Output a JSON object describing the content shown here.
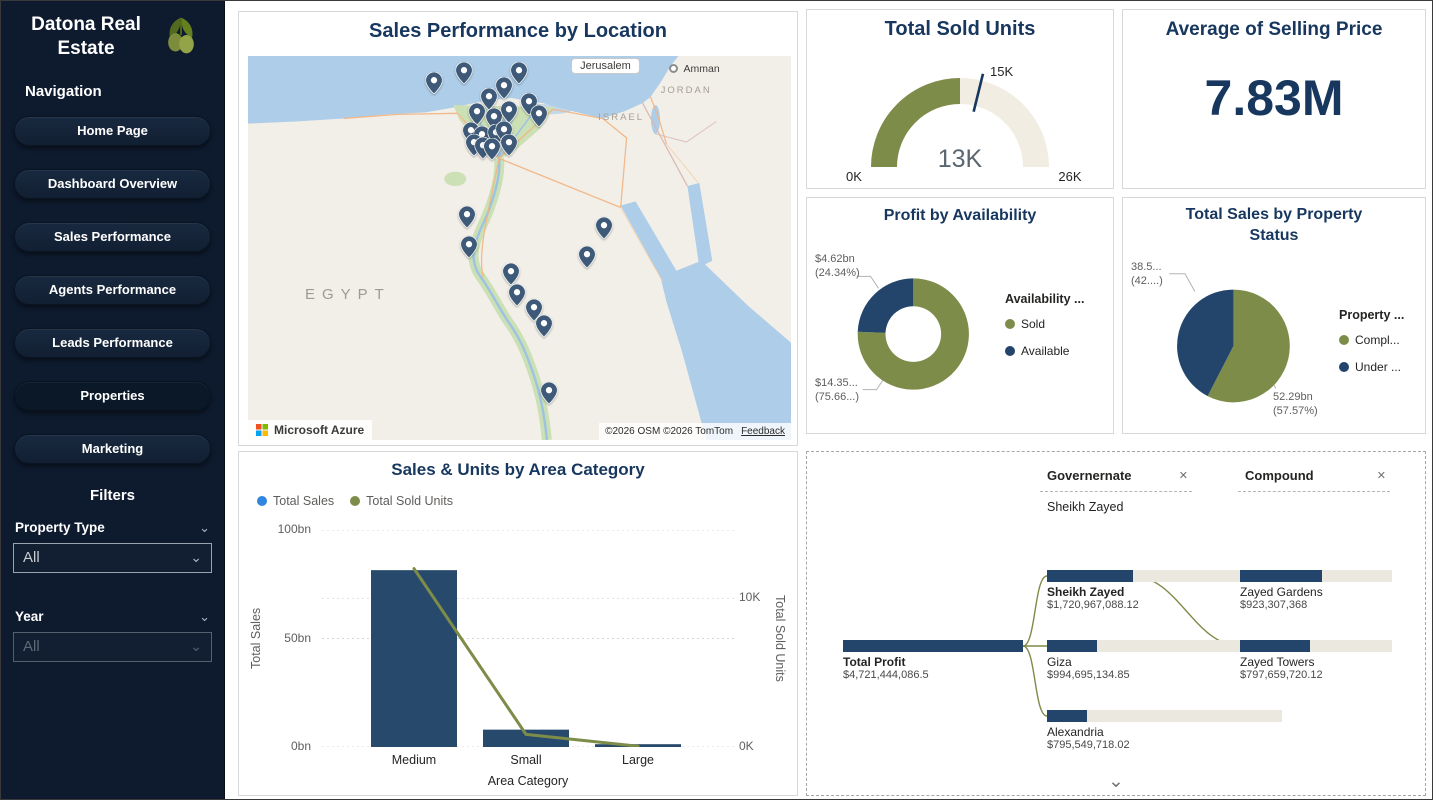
{
  "app": {
    "title": "Datona Real Estate"
  },
  "sidebar": {
    "nav_heading": "Navigation",
    "nav_items": [
      {
        "label": "Home Page",
        "active": false
      },
      {
        "label": "Dashboard Overview",
        "active": false
      },
      {
        "label": "Sales Performance",
        "active": false
      },
      {
        "label": "Agents Performance",
        "active": false
      },
      {
        "label": "Leads Performance",
        "active": false
      },
      {
        "label": "Properties",
        "active": true
      },
      {
        "label": "Marketing",
        "active": false
      }
    ],
    "filters_heading": "Filters",
    "filters": [
      {
        "label": "Property Type",
        "value": "All"
      },
      {
        "label": "Year",
        "value": "All"
      }
    ]
  },
  "map": {
    "title": "Sales Performance by Location",
    "labels": {
      "jerusalem": "Jerusalem",
      "amman": "Amman",
      "israel": "ISRAEL",
      "jordan": "JORDAN",
      "egypt": "EGYPT"
    },
    "attribution": {
      "brand": "Microsoft Azure",
      "copyright": "©2026 OSM  ©2026 TomTom",
      "feedback": "Feedback"
    },
    "pin_color": "#3E5A78",
    "pins": [
      [
        34.3,
        11.3
      ],
      [
        39.8,
        8.6
      ],
      [
        47.2,
        12.6
      ],
      [
        49.9,
        8.6
      ],
      [
        51.7,
        16.7
      ],
      [
        44.4,
        15.3
      ],
      [
        42.2,
        19.4
      ],
      [
        45.3,
        20.7
      ],
      [
        48.1,
        18.8
      ],
      [
        41.1,
        24.2
      ],
      [
        43.1,
        25.3
      ],
      [
        45.7,
        24.7
      ],
      [
        47.2,
        23.9
      ],
      [
        41.7,
        27.4
      ],
      [
        43.3,
        28
      ],
      [
        45,
        28.5
      ],
      [
        48.1,
        27.4
      ],
      [
        53.6,
        19.9
      ],
      [
        40.4,
        46.2
      ],
      [
        40.7,
        53.8
      ],
      [
        65.5,
        48.9
      ],
      [
        62.4,
        56.5
      ],
      [
        48.4,
        61
      ],
      [
        49.5,
        66.4
      ],
      [
        52.7,
        70.4
      ],
      [
        54.5,
        74.5
      ],
      [
        55.4,
        91.9
      ]
    ]
  },
  "cards": {
    "avg_price": {
      "title": "Average of Selling Price",
      "value": "7.83M"
    }
  },
  "chart_data": [
    {
      "id": "gauge",
      "type": "gauge",
      "title": "Total Sold Units",
      "min": 0,
      "max": 26,
      "value": 13,
      "target": 15,
      "min_label": "0K",
      "max_label": "26K",
      "value_label": "13K",
      "target_label": "15K",
      "color": "#7E8C4A",
      "track_color": "#F1EDE2",
      "target_line_color": "#17375E"
    },
    {
      "id": "availability-donut",
      "type": "pie",
      "subtype": "donut",
      "title": "Profit by Availability",
      "legend_title": "Availability ...",
      "slices": [
        {
          "label": "Sold",
          "pct": 75.66,
          "color": "#7E8C4A",
          "callout_value": "$14.35...",
          "callout_pct": "(75.66...)"
        },
        {
          "label": "Available",
          "pct": 24.34,
          "color": "#24456B",
          "callout_value": "$4.62bn",
          "callout_pct": "(24.34%)"
        }
      ]
    },
    {
      "id": "status-pie",
      "type": "pie",
      "subtype": "pie",
      "title": "Total Sales by Property Status",
      "legend_title": "Property ...",
      "slices": [
        {
          "label": "Compl...",
          "pct": 57.57,
          "color": "#7E8C4A",
          "callout_value": "52.29bn",
          "callout_pct": "(57.57%)"
        },
        {
          "label": "Under ...",
          "pct": 42.43,
          "color": "#24456B",
          "callout_value": "38.5...",
          "callout_pct": "(42....)"
        }
      ]
    },
    {
      "id": "combo",
      "type": "bar",
      "title": "Sales & Units by Area Category",
      "categories": [
        "Medium",
        "Small",
        "Large"
      ],
      "series": [
        {
          "name": "Total Sales",
          "kind": "bar",
          "axis": "left",
          "values_bn": [
            81.5,
            8,
            1.3
          ],
          "color": "#27496B",
          "legend_color": "#2E86DE"
        },
        {
          "name": "Total Sold Units",
          "kind": "line",
          "axis": "right",
          "values_k": [
            12,
            0.85,
            0.05
          ],
          "color": "#7E8C4A",
          "legend_color": "#7E8C4A"
        }
      ],
      "x_label": "Area Category",
      "y_left": {
        "label": "Total Sales",
        "max": 100,
        "ticks": [
          {
            "label": "100bn",
            "value": 100
          },
          {
            "label": "50bn",
            "value": 50
          },
          {
            "label": "0bn",
            "value": 0
          }
        ]
      },
      "y_right": {
        "label": "Total Sold Units",
        "max": 14.6,
        "ticks": [
          {
            "label": "10K",
            "value": 10
          },
          {
            "label": "0K",
            "value": 0
          }
        ]
      },
      "grid": true,
      "legend_position": "top-left"
    },
    {
      "id": "decomposition",
      "type": "decomposition-tree",
      "headers": [
        {
          "label": "Governernate"
        },
        {
          "label": "Compound"
        }
      ],
      "selected_value": "Sheikh Zayed",
      "bar_color": "#24456B",
      "bar_track": "#EBE8E0",
      "connector_color": "#7E8C4A",
      "root": {
        "name": "Total Profit",
        "value_label": "$4,721,444,086.5",
        "value": 4721444086.5
      },
      "levels": [
        {
          "name": "Governernate",
          "nodes": [
            {
              "name": "Sheikh Zayed",
              "value_label": "$1,720,967,088.12",
              "value": 1720967088.12,
              "selected": true
            },
            {
              "name": "Giza",
              "value_label": "$994,695,134.85",
              "value": 994695134.85,
              "selected": false
            },
            {
              "name": "Alexandria",
              "value_label": "$795,549,718.02",
              "value": 795549718.02,
              "selected": false
            }
          ]
        },
        {
          "name": "Compound",
          "nodes": [
            {
              "name": "Zayed Gardens",
              "value_label": "$923,307,368",
              "value": 923307368,
              "selected": false
            },
            {
              "name": "Zayed Towers",
              "value_label": "$797,659,720.12",
              "value": 797659720.12,
              "selected": false
            }
          ]
        }
      ]
    }
  ]
}
